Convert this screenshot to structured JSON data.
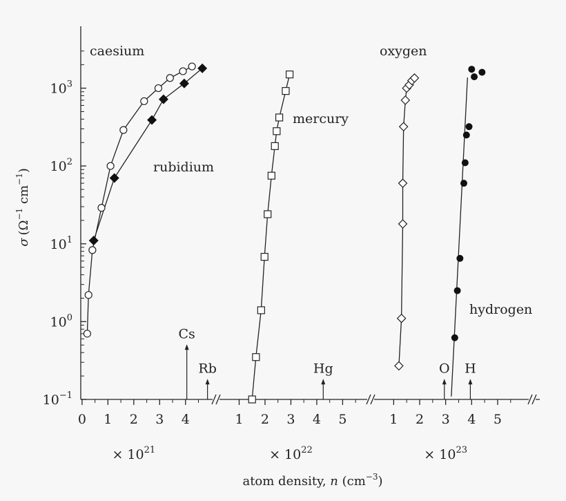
{
  "chart_data": {
    "type": "scatter",
    "y_scale": "log",
    "ylim_exponent": [
      -1,
      3.6
    ],
    "ylabel": {
      "sigma": "σ",
      "unit_open": "(Ω",
      "exp1": "−1",
      "unit_mid": " cm",
      "exp2": "−1",
      "unit_close": ")"
    },
    "xlabel": {
      "text": "atom density, ",
      "var": "n",
      "unit_open": " (cm",
      "exp": "−3",
      "unit_close": ")"
    },
    "y_ticks": [
      {
        "exp": -1,
        "base": "10",
        "sup": "−1"
      },
      {
        "exp": 0,
        "base": "10",
        "sup": "0"
      },
      {
        "exp": 1,
        "base": "10",
        "sup": "1"
      },
      {
        "exp": 2,
        "base": "10",
        "sup": "2"
      },
      {
        "exp": 3,
        "base": "10",
        "sup": "3"
      }
    ],
    "segments": [
      {
        "multiplier": {
          "base": "× 10",
          "sup": "21"
        },
        "ticks": [
          "0",
          "1",
          "2",
          "3",
          "4"
        ],
        "tick_values": [
          0,
          1,
          2,
          3,
          4
        ],
        "range": [
          -0.05,
          5.1
        ]
      },
      {
        "multiplier": {
          "base": "× 10",
          "sup": "22"
        },
        "ticks": [
          "1",
          "2",
          "3",
          "4",
          "5"
        ],
        "tick_values": [
          1,
          2,
          3,
          4,
          5
        ],
        "range": [
          0.4,
          5.95
        ]
      },
      {
        "multiplier": {
          "base": "× 10",
          "sup": "23"
        },
        "ticks": [
          "1",
          "2",
          "3",
          "4",
          "5"
        ],
        "tick_values": [
          1,
          2,
          3,
          4,
          5
        ],
        "range": [
          0.3,
          6.25
        ]
      }
    ],
    "series": [
      {
        "name": "caesium",
        "segment": 0,
        "marker": "circle-open",
        "x": [
          0.2,
          0.25,
          0.4,
          0.75,
          1.1,
          1.6,
          2.4,
          2.95,
          3.4,
          3.9,
          4.25
        ],
        "y": [
          0.7,
          2.2,
          8.3,
          29,
          100,
          290,
          680,
          1000,
          1350,
          1650,
          1900
        ]
      },
      {
        "name": "rubidium",
        "segment": 0,
        "marker": "diamond-filled",
        "x": [
          0.45,
          1.25,
          2.7,
          3.15,
          3.95,
          4.65
        ],
        "y": [
          11,
          70,
          390,
          720,
          1150,
          1800
        ]
      },
      {
        "name": "mercury",
        "segment": 1,
        "marker": "square-open",
        "x": [
          1.5,
          1.65,
          1.85,
          1.98,
          2.1,
          2.25,
          2.38,
          2.45,
          2.55,
          2.8,
          2.95
        ],
        "y": [
          0.1,
          0.35,
          1.4,
          6.8,
          24,
          75,
          180,
          280,
          420,
          920,
          1500
        ]
      },
      {
        "name": "oxygen",
        "segment": 2,
        "marker": "diamond-open",
        "x": [
          1.2,
          1.3,
          1.35,
          1.35,
          1.38,
          1.45,
          1.5,
          1.6,
          1.7,
          1.8
        ],
        "y": [
          0.27,
          1.1,
          18,
          60,
          320,
          700,
          1000,
          1100,
          1250,
          1350
        ]
      },
      {
        "name": "hydrogen",
        "segment": 2,
        "marker": "circle-filled",
        "x": [
          3.35,
          3.45,
          3.55,
          3.7,
          3.75,
          3.8,
          3.9,
          4.0,
          4.1,
          4.4
        ],
        "y": [
          0.62,
          2.5,
          6.5,
          60,
          110,
          250,
          320,
          1750,
          1400,
          1600
        ]
      }
    ],
    "annotations": [
      {
        "label": "Cs",
        "segment": 0,
        "x": 4.05,
        "y_tip": 0.5
      },
      {
        "label": "Rb",
        "segment": 0,
        "x": 4.85,
        "y_tip": 0.18
      },
      {
        "label": "Hg",
        "segment": 1,
        "x": 4.25,
        "y_tip": 0.18
      },
      {
        "label": "O",
        "segment": 2,
        "x": 2.95,
        "y_tip": 0.18
      },
      {
        "label": "H",
        "segment": 2,
        "x": 3.95,
        "y_tip": 0.18
      }
    ]
  }
}
